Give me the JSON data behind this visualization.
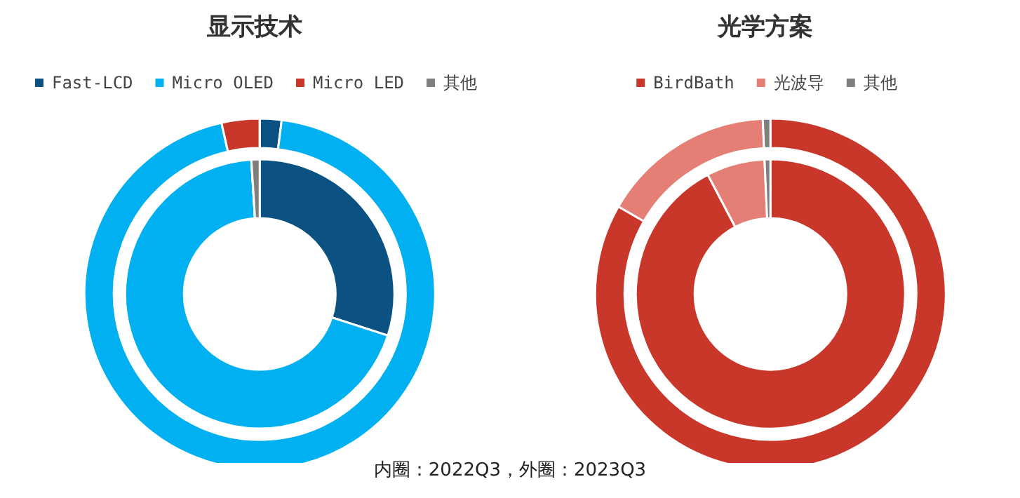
{
  "chart_data": [
    {
      "type": "donut",
      "title": "显示技术",
      "categories": [
        "Fast-LCD",
        "Micro OLED",
        "Micro LED",
        "其他"
      ],
      "colors": [
        "#0b5283",
        "#00b0f0",
        "#c8372a",
        "#7f7f7f"
      ],
      "legend": "top",
      "series": [
        {
          "values": [
            30,
            69,
            0,
            1
          ]
        },
        {
          "values": [
            2,
            94.5,
            3.5,
            0
          ]
        }
      ],
      "annotations": [
        "内圈：2022Q3，外圈：2023Q3"
      ]
    },
    {
      "type": "donut",
      "title": "光学方案",
      "categories": [
        "BirdBath",
        "光波导",
        "其他"
      ],
      "colors": [
        "#c8372a",
        "#e57f76",
        "#7f7f7f"
      ],
      "legend": "top",
      "series": [
        {
          "values": [
            92.3,
            7,
            0.7
          ]
        },
        {
          "values": [
            83.3,
            16,
            0.7
          ]
        }
      ]
    }
  ]
}
